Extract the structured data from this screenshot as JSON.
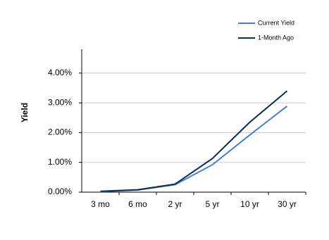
{
  "chart_data": {
    "type": "line",
    "y_label": "Yield",
    "categories": [
      "3 mo",
      "6 mo",
      "2 yr",
      "5 yr",
      "10 yr",
      "30 yr"
    ],
    "series": [
      {
        "name": "Current Yield",
        "color": "#4a7be0",
        "values": [
          0.02,
          0.07,
          0.25,
          0.92,
          1.92,
          2.89
        ]
      },
      {
        "name": "1-Month Ago",
        "color": "#0c2c55",
        "values": [
          0.03,
          0.08,
          0.27,
          1.13,
          2.35,
          3.4
        ]
      }
    ],
    "ylim": [
      0,
      4.8
    ],
    "yticks": [
      {
        "value": 0,
        "label": "0.00%"
      },
      {
        "value": 1,
        "label": "1.00%"
      },
      {
        "value": 2,
        "label": "2.00%"
      },
      {
        "value": 3,
        "label": "3.00%"
      },
      {
        "value": 4,
        "label": "4.00%"
      }
    ],
    "grid": true,
    "legend": "top-right"
  }
}
